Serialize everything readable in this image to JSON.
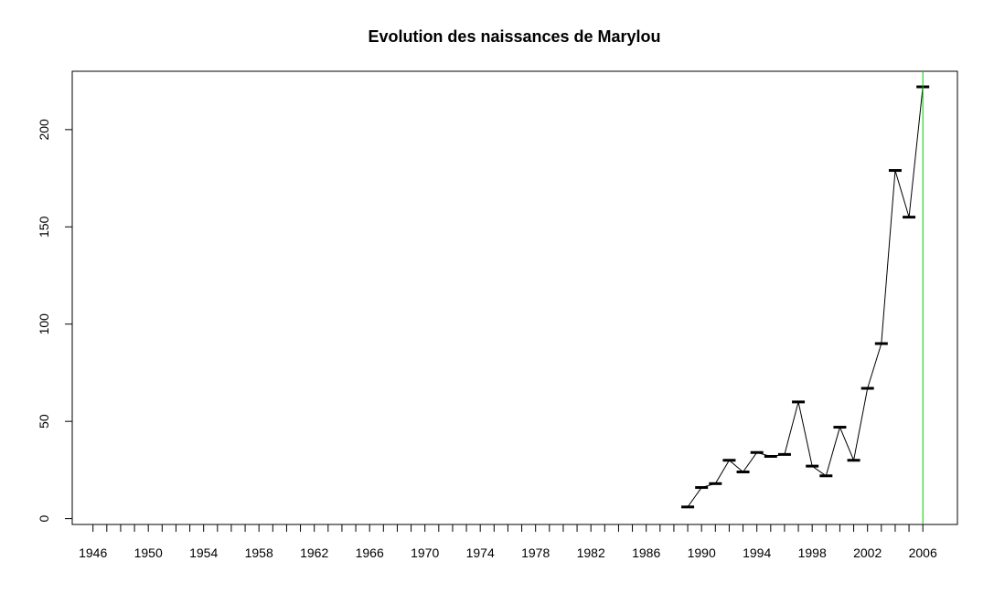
{
  "chart_data": {
    "type": "line",
    "title": "Evolution des naissances de Marylou",
    "xlabel": "",
    "ylabel": "",
    "xlim": [
      1944.5,
      2008.5
    ],
    "ylim": [
      -3,
      230
    ],
    "x_ticks": [
      1946,
      1947,
      1948,
      1949,
      1950,
      1951,
      1952,
      1953,
      1954,
      1955,
      1956,
      1957,
      1958,
      1959,
      1960,
      1961,
      1962,
      1963,
      1964,
      1965,
      1966,
      1967,
      1968,
      1969,
      1970,
      1971,
      1972,
      1973,
      1974,
      1975,
      1976,
      1977,
      1978,
      1979,
      1980,
      1981,
      1982,
      1983,
      1984,
      1985,
      1986,
      1987,
      1988,
      1989,
      1990,
      1991,
      1992,
      1993,
      1994,
      1995,
      1996,
      1997,
      1998,
      1999,
      2000,
      2001,
      2002,
      2003,
      2004,
      2005,
      2006
    ],
    "x_tick_labels": [
      "1946",
      "1950",
      "1954",
      "1958",
      "1962",
      "1966",
      "1970",
      "1974",
      "1978",
      "1982",
      "1986",
      "1990",
      "1994",
      "1998",
      "2002",
      "2006"
    ],
    "y_ticks": [
      0,
      50,
      100,
      150,
      200
    ],
    "y_tick_labels": [
      "0",
      "50",
      "100",
      "150",
      "200"
    ],
    "series": [
      {
        "x": [
          1989,
          1990,
          1991,
          1992,
          1993,
          1994,
          1995,
          1996,
          1997,
          1998,
          1999,
          2000,
          2001,
          2002,
          2003,
          2004,
          2005,
          2006
        ],
        "values": [
          6,
          16,
          18,
          30,
          24,
          34,
          32,
          33,
          60,
          27,
          22,
          47,
          30,
          67,
          90,
          179,
          155,
          222
        ]
      }
    ],
    "vline": {
      "x": 2006,
      "color": "#00cc00"
    },
    "line_color": "#000000",
    "grid": false
  }
}
